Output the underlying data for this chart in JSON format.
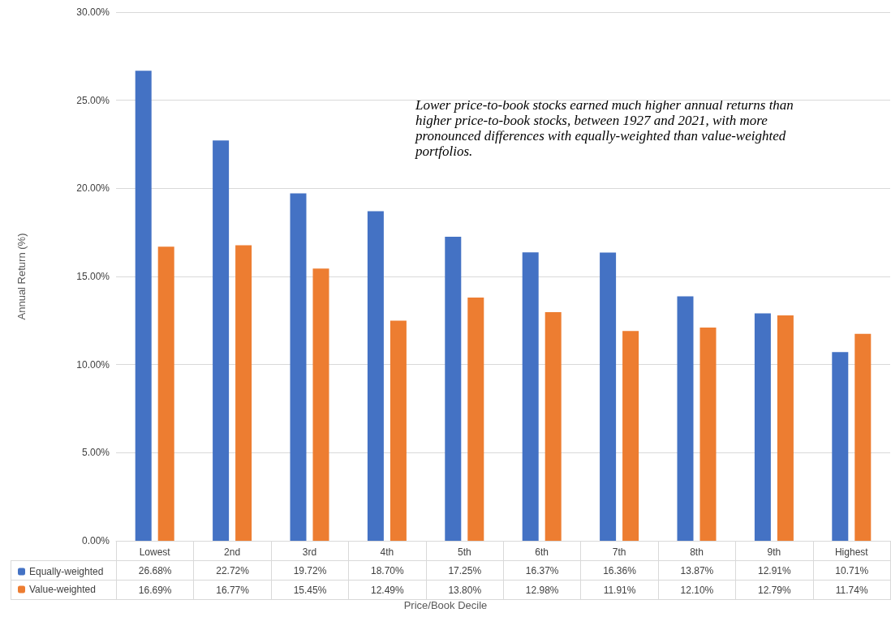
{
  "chart_data": {
    "type": "bar",
    "xlabel": "Price/Book Decile",
    "ylabel": "Annual Return (%)",
    "annotations": [
      "Lower price-to-book stocks earned much higher annual returns than higher price-to-book stocks, between 1927 and 2021, with more pronounced differences with equally-weighted than value-weighted portfolios."
    ],
    "categories": [
      "Lowest",
      "2nd",
      "3rd",
      "4th",
      "5th",
      "6th",
      "7th",
      "8th",
      "9th",
      "Highest"
    ],
    "series": [
      {
        "name": "Equally-weighted",
        "color": "#4472c4",
        "values": [
          26.68,
          22.72,
          19.72,
          18.7,
          17.25,
          16.37,
          16.36,
          13.87,
          12.91,
          10.71
        ],
        "value_labels": [
          "26.68%",
          "22.72%",
          "19.72%",
          "18.70%",
          "17.25%",
          "16.37%",
          "16.36%",
          "13.87%",
          "12.91%",
          "10.71%"
        ]
      },
      {
        "name": "Value-weighted",
        "color": "#ed7d31",
        "values": [
          16.69,
          16.77,
          15.45,
          12.49,
          13.8,
          12.98,
          11.91,
          12.1,
          12.79,
          11.74
        ],
        "value_labels": [
          "16.69%",
          "16.77%",
          "15.45%",
          "12.49%",
          "13.80%",
          "12.98%",
          "11.91%",
          "12.10%",
          "12.79%",
          "11.74%"
        ]
      }
    ],
    "ylim": [
      0,
      30
    ],
    "yticks": [
      {
        "value": 0,
        "label": "0.00%"
      },
      {
        "value": 5,
        "label": "5.00%"
      },
      {
        "value": 10,
        "label": "10.00%"
      },
      {
        "value": 15,
        "label": "15.00%"
      },
      {
        "value": 20,
        "label": "20.00%"
      },
      {
        "value": 25,
        "label": "25.00%"
      },
      {
        "value": 30,
        "label": "30.00%"
      }
    ],
    "grid": "y",
    "legend": "bottom left"
  }
}
